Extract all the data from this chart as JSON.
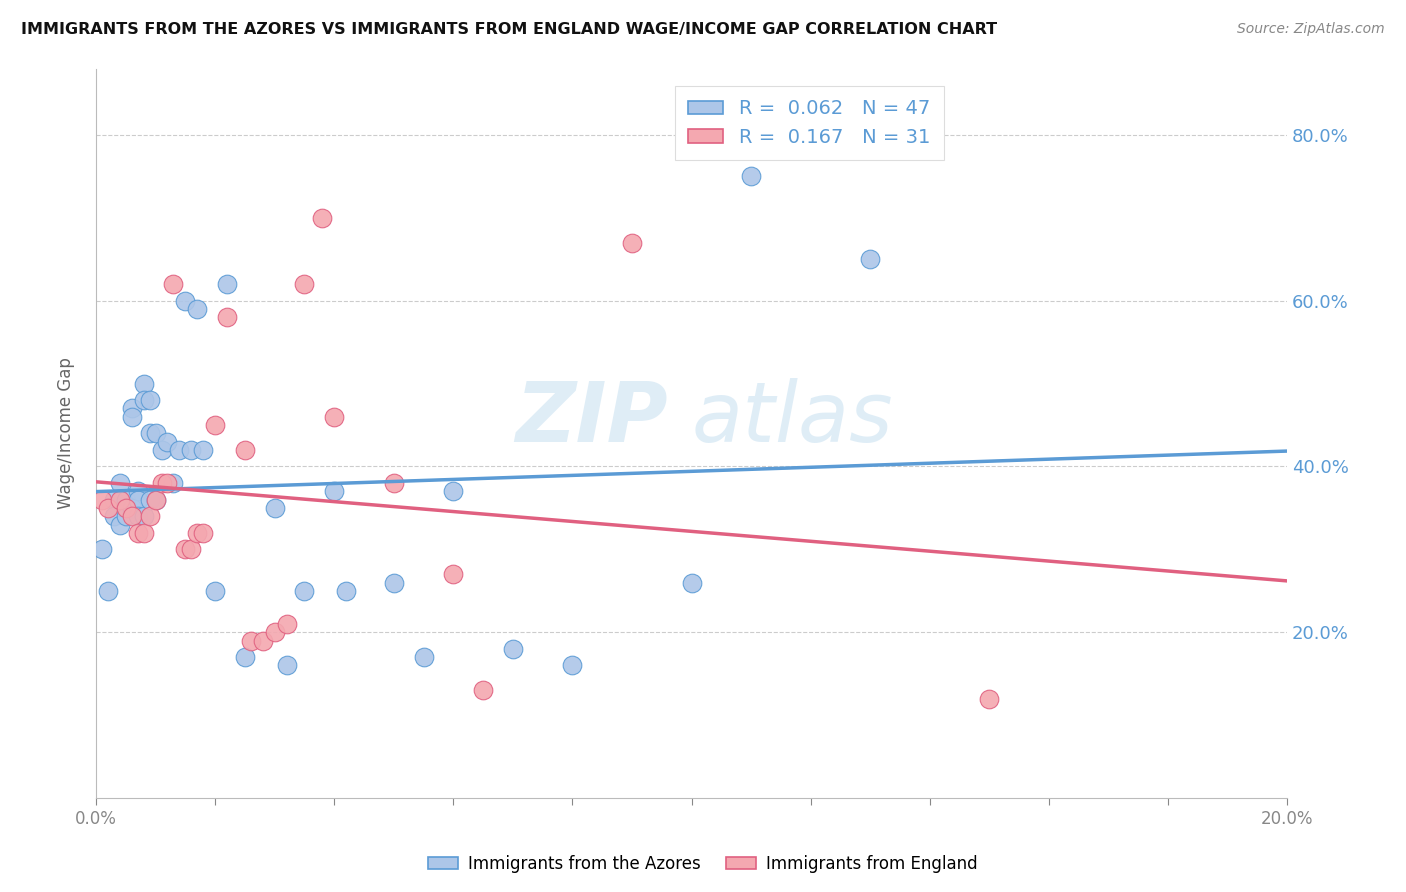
{
  "title": "IMMIGRANTS FROM THE AZORES VS IMMIGRANTS FROM ENGLAND WAGE/INCOME GAP CORRELATION CHART",
  "source": "Source: ZipAtlas.com",
  "ylabel": "Wage/Income Gap",
  "ylabel_right_ticks": [
    "20.0%",
    "40.0%",
    "60.0%",
    "80.0%"
  ],
  "ylabel_right_vals": [
    0.2,
    0.4,
    0.6,
    0.8
  ],
  "xlim": [
    0.0,
    0.2
  ],
  "ylim": [
    0.0,
    0.88
  ],
  "color_azores": "#adc6e8",
  "color_england": "#f4a8b0",
  "color_azores_line": "#5b9bd5",
  "color_england_line": "#e06080",
  "watermark": "ZIPatlas",
  "azores_x": [
    0.001,
    0.002,
    0.003,
    0.003,
    0.004,
    0.004,
    0.005,
    0.005,
    0.005,
    0.006,
    0.006,
    0.006,
    0.007,
    0.007,
    0.007,
    0.008,
    0.008,
    0.008,
    0.009,
    0.009,
    0.009,
    0.01,
    0.01,
    0.011,
    0.012,
    0.013,
    0.014,
    0.015,
    0.016,
    0.017,
    0.018,
    0.02,
    0.022,
    0.025,
    0.03,
    0.032,
    0.035,
    0.04,
    0.042,
    0.05,
    0.055,
    0.06,
    0.07,
    0.08,
    0.1,
    0.11,
    0.13
  ],
  "azores_y": [
    0.3,
    0.25,
    0.36,
    0.34,
    0.38,
    0.33,
    0.36,
    0.35,
    0.34,
    0.47,
    0.46,
    0.35,
    0.37,
    0.36,
    0.34,
    0.5,
    0.48,
    0.34,
    0.48,
    0.44,
    0.36,
    0.44,
    0.36,
    0.42,
    0.43,
    0.38,
    0.42,
    0.6,
    0.42,
    0.59,
    0.42,
    0.25,
    0.62,
    0.17,
    0.35,
    0.16,
    0.25,
    0.37,
    0.25,
    0.26,
    0.17,
    0.37,
    0.18,
    0.16,
    0.26,
    0.75,
    0.65
  ],
  "england_x": [
    0.001,
    0.002,
    0.004,
    0.005,
    0.006,
    0.007,
    0.008,
    0.009,
    0.01,
    0.011,
    0.012,
    0.013,
    0.015,
    0.016,
    0.017,
    0.018,
    0.02,
    0.022,
    0.025,
    0.026,
    0.028,
    0.03,
    0.032,
    0.035,
    0.038,
    0.04,
    0.05,
    0.06,
    0.065,
    0.09,
    0.15
  ],
  "england_y": [
    0.36,
    0.35,
    0.36,
    0.35,
    0.34,
    0.32,
    0.32,
    0.34,
    0.36,
    0.38,
    0.38,
    0.62,
    0.3,
    0.3,
    0.32,
    0.32,
    0.45,
    0.58,
    0.42,
    0.19,
    0.19,
    0.2,
    0.21,
    0.62,
    0.7,
    0.46,
    0.38,
    0.27,
    0.13,
    0.67,
    0.12
  ]
}
